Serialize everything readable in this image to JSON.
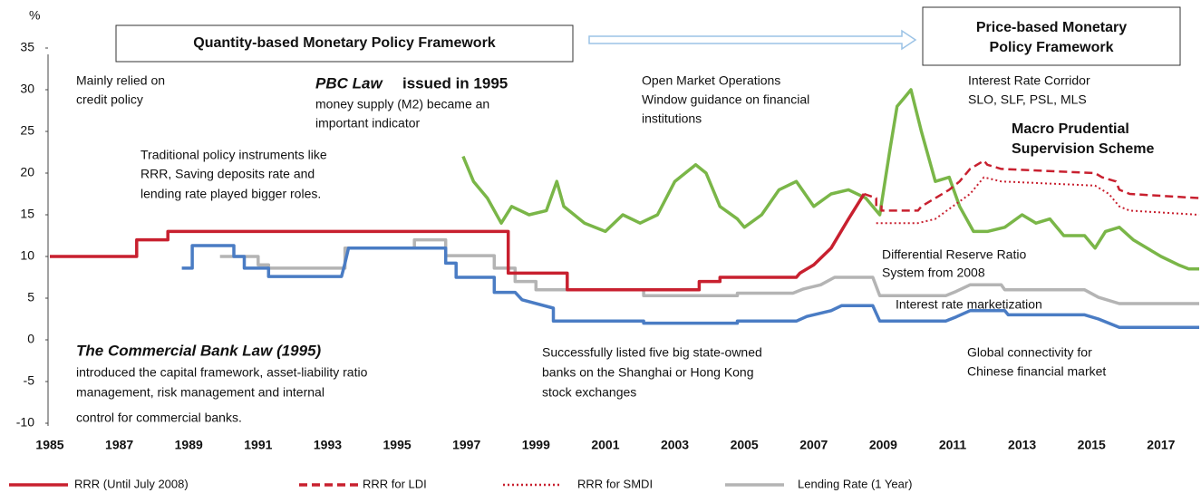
{
  "chart_data": {
    "type": "line",
    "unit": "%",
    "xlim": [
      1985,
      2018.1
    ],
    "xticks": [
      1985,
      1987,
      1989,
      1991,
      1993,
      1995,
      1997,
      1999,
      2001,
      2003,
      2005,
      2007,
      2009,
      2011,
      2013,
      2015,
      2017
    ],
    "ylim": [
      -10,
      35
    ],
    "yticks": [
      -10,
      -5,
      0,
      5,
      10,
      15,
      20,
      25,
      30,
      35
    ],
    "frames": [
      "Quantity-based Monetary Policy Framework",
      "Price-based Monetary",
      "Policy Framework"
    ],
    "annotations": [
      {
        "text": "Mainly relied on"
      },
      {
        "text": "credit policy"
      },
      {
        "text": "PBC Law",
        "style": "bold-italic"
      },
      {
        "text": "issued in 1995",
        "style": "bold"
      },
      {
        "text": "money supply (M2) became an"
      },
      {
        "text": "important indicator"
      },
      {
        "text": "Traditional policy instruments like"
      },
      {
        "text": "RRR, Saving deposits rate and"
      },
      {
        "text": "lending rate played bigger roles."
      },
      {
        "text": "Open Market Operations"
      },
      {
        "text": "Window guidance on financial"
      },
      {
        "text": "institutions"
      },
      {
        "text": "Interest Rate Corridor"
      },
      {
        "text": "SLO, SLF, PSL, MLS"
      },
      {
        "text": "Macro Prudential",
        "style": "bold"
      },
      {
        "text": "Supervision Scheme",
        "style": "bold"
      },
      {
        "text": "Differential Reserve Ratio"
      },
      {
        "text": "System from 2008"
      },
      {
        "text": "Interest rate marketization"
      },
      {
        "text": "The Commercial Bank Law (1995)",
        "style": "bold-italic"
      },
      {
        "text": "introduced the capital framework, asset-liability ratio"
      },
      {
        "text": "management, risk management and internal"
      },
      {
        "text": "control for commercial banks."
      },
      {
        "text": "Successfully listed five big state-owned"
      },
      {
        "text": "banks on the Shanghai or Hong Kong"
      },
      {
        "text": "stock exchanges"
      },
      {
        "text": "Global connectivity for"
      },
      {
        "text": "Chinese financial market"
      }
    ],
    "series": [
      {
        "name": "RRR (Until July 2008)",
        "color": "#c8202f",
        "dash": "solid",
        "x": [
          1985,
          1987.5,
          1987.5,
          1988.4,
          1988.4,
          1998.2,
          1998.2,
          1999.9,
          1999.9,
          2003.7,
          2003.7,
          2004.3,
          2004.3,
          2006.5,
          2006.6,
          2007,
          2007.5,
          2008,
          2008.45
        ],
        "values": [
          10,
          10,
          12,
          12,
          13,
          13,
          8,
          8,
          6,
          6,
          7,
          7,
          7.5,
          7.5,
          8,
          9,
          11,
          14.5,
          17.5
        ]
      },
      {
        "name": "RRR for LDI",
        "color": "#c8202f",
        "dash": "dashed",
        "x": [
          2008.45,
          2008.8,
          2008.8,
          2008.95,
          2008.95,
          2010,
          2010.1,
          2010.3,
          2010.5,
          2010.9,
          2011.2,
          2011.5,
          2011.9,
          2012,
          2012.4,
          2015.1,
          2015.3,
          2015.7,
          2015.8,
          2016.1,
          2018.1
        ],
        "values": [
          17.5,
          17,
          16,
          16,
          15.5,
          15.5,
          16,
          16.5,
          17,
          18,
          19,
          20.5,
          21.5,
          21,
          20.5,
          20,
          19.5,
          19,
          18,
          17.5,
          17
        ]
      },
      {
        "name": "RRR for SMDI",
        "color": "#c8202f",
        "dash": "dotted",
        "x": [
          2008.8,
          2010,
          2010.5,
          2011,
          2011.5,
          2011.9,
          2012.4,
          2015.1,
          2015.5,
          2015.8,
          2016.1,
          2018.1
        ],
        "values": [
          14,
          14,
          14.5,
          16,
          17.5,
          19.5,
          19,
          18.5,
          17.5,
          16,
          15.5,
          15
        ]
      },
      {
        "name": "Lending Rate (1 Year)",
        "color": "#b4b4b4",
        "dash": "solid",
        "x": [
          1989.9,
          1991,
          1991,
          1991.3,
          1991.3,
          1993.5,
          1993.5,
          1995.5,
          1995.5,
          1996.4,
          1996.4,
          1997.8,
          1997.8,
          1998.4,
          1998.4,
          1999,
          1999,
          2002.1,
          2002.1,
          2004.8,
          2004.8,
          2006.4,
          2006.7,
          2007.2,
          2007.6,
          2008.7,
          2008.9,
          2010.8,
          2011.1,
          2011.5,
          2012.4,
          2012.5,
          2014.8,
          2015.2,
          2015.8,
          2018.1
        ],
        "values": [
          10,
          10,
          9,
          9,
          8.6,
          8.6,
          11,
          11,
          12,
          12,
          10.1,
          10.1,
          8.6,
          8.6,
          7,
          7,
          6,
          6,
          5.3,
          5.3,
          5.6,
          5.6,
          6.1,
          6.6,
          7.5,
          7.5,
          5.3,
          5.3,
          5.8,
          6.6,
          6.6,
          6,
          6,
          5.1,
          4.35,
          4.35
        ]
      },
      {
        "color": "#4a7cc4",
        "dash": "solid",
        "x": [
          1988.8,
          1989.1,
          1989.1,
          1990.3,
          1990.3,
          1990.6,
          1990.6,
          1991.3,
          1991.3,
          1993.4,
          1993.5,
          1993.6,
          1996.4,
          1996.4,
          1996.7,
          1996.7,
          1997.8,
          1997.8,
          1998.4,
          1998.6,
          1999.5,
          1999.5,
          2002.1,
          2002.1,
          2004.8,
          2004.8,
          2006.5,
          2006.8,
          2007.5,
          2007.8,
          2008.7,
          2008.9,
          2010.8,
          2011.1,
          2011.5,
          2012.5,
          2012.6,
          2014.8,
          2015.2,
          2015.8,
          2018.1
        ],
        "values": [
          8.6,
          8.6,
          11.3,
          11.3,
          10,
          10,
          8.6,
          8.6,
          7.6,
          7.6,
          9.2,
          11,
          11,
          9.2,
          9.2,
          7.5,
          7.5,
          5.7,
          5.7,
          4.8,
          3.8,
          2.25,
          2.25,
          2,
          2,
          2.25,
          2.25,
          2.8,
          3.5,
          4.1,
          4.1,
          2.25,
          2.25,
          2.75,
          3.5,
          3.5,
          3,
          3,
          2.5,
          1.5,
          1.5
        ]
      },
      {
        "color": "#7ab648",
        "dash": "solid",
        "x": [
          1996.9,
          1997.2,
          1997.6,
          1998,
          1998.3,
          1998.8,
          1999.3,
          1999.6,
          1999.8,
          2000.4,
          2001,
          2001.5,
          2002,
          2002.5,
          2003,
          2003.6,
          2003.9,
          2004.3,
          2004.8,
          2005,
          2005.5,
          2006,
          2006.5,
          2007,
          2007.5,
          2008,
          2008.5,
          2008.9,
          2009.2,
          2009.4,
          2009.6,
          2009.8,
          2010.1,
          2010.5,
          2010.9,
          2011.2,
          2011.6,
          2012,
          2012.5,
          2013,
          2013.4,
          2013.8,
          2014.2,
          2014.8,
          2015.1,
          2015.4,
          2015.8,
          2016.2,
          2016.6,
          2017,
          2017.5,
          2017.8,
          2018.1
        ],
        "values": [
          22,
          19,
          17,
          14,
          16,
          15,
          15.5,
          19,
          16,
          14,
          13,
          15,
          14,
          15,
          19,
          21,
          20,
          16,
          14.5,
          13.5,
          15,
          18,
          19,
          16,
          17.5,
          18,
          17,
          15,
          23,
          28,
          29,
          30,
          25,
          19,
          19.5,
          16,
          13,
          13,
          13.5,
          15,
          14,
          14.5,
          12.5,
          12.5,
          11,
          13,
          13.5,
          12,
          11,
          10,
          9,
          8.5,
          8.5
        ]
      }
    ]
  }
}
